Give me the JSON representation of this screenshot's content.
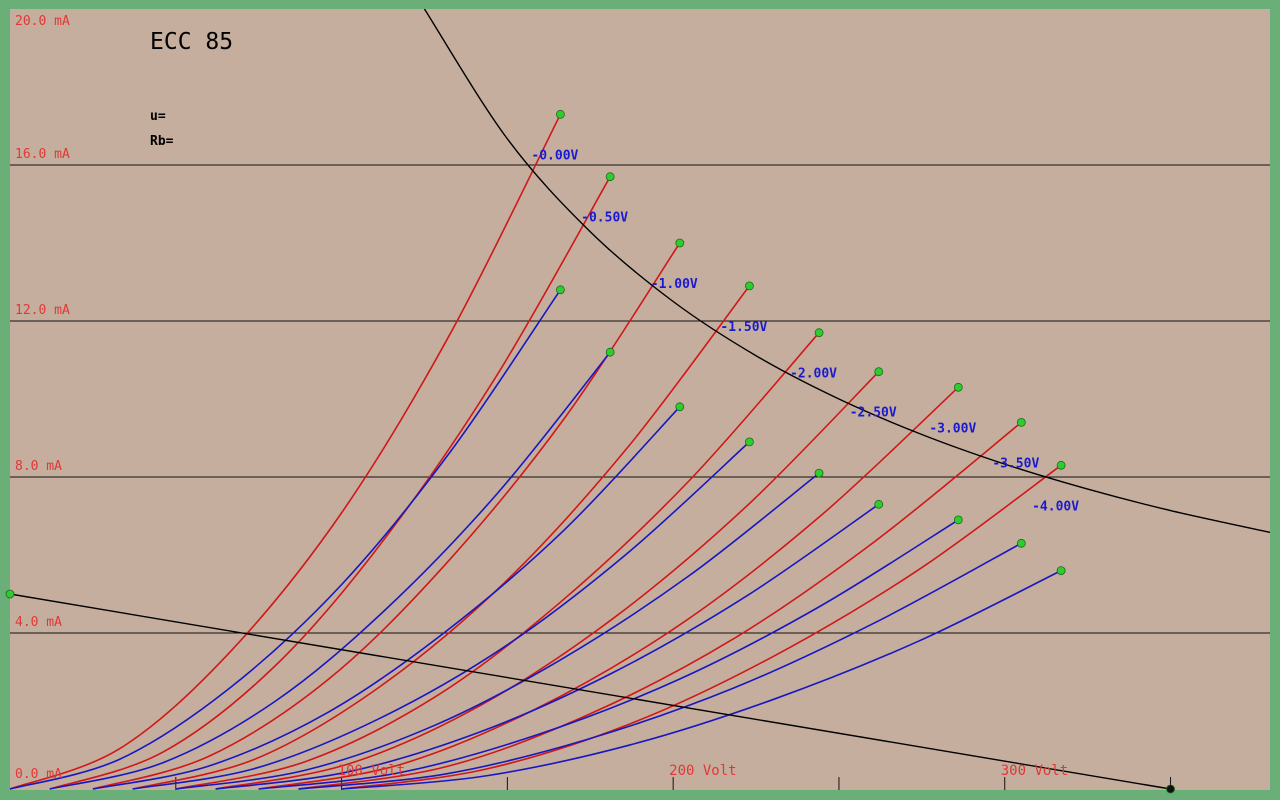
{
  "chart_data": {
    "type": "line",
    "title": "ECC 85",
    "annotations": [
      "u=",
      "Rb="
    ],
    "xlim": [
      0,
      380
    ],
    "ylim": [
      0,
      20
    ],
    "xticks": [
      {
        "value": 100,
        "label": "100 Volt"
      },
      {
        "value": 200,
        "label": "200 Volt"
      },
      {
        "value": 300,
        "label": "300 Volt"
      }
    ],
    "xminor_ticks": [
      50,
      150,
      250,
      350
    ],
    "yticks": [
      {
        "value": 0,
        "label": "0.0 mA"
      },
      {
        "value": 4,
        "label": "4.0 mA"
      },
      {
        "value": 8,
        "label": "8.0 mA"
      },
      {
        "value": 12,
        "label": "12.0 mA"
      },
      {
        "value": 16,
        "label": "16.0 mA"
      },
      {
        "value": 20,
        "label": "20.0 mA"
      }
    ],
    "grid": true,
    "series": [
      {
        "name": "-0.00V",
        "color": "#d01818",
        "end_marker_color": "#2ecc2e",
        "x": [
          0,
          33,
          66,
          100,
          133,
          166
        ],
        "values": [
          0,
          1.03,
          3.48,
          7.08,
          11.71,
          17.3
        ]
      },
      {
        "name": "-0.50V",
        "color": "#d01818",
        "end_marker_color": "#2ecc2e",
        "x": [
          12,
          46,
          80,
          113,
          147,
          181
        ],
        "values": [
          0,
          0.94,
          3.16,
          6.42,
          10.63,
          15.7
        ]
      },
      {
        "name": "-1.00V",
        "color": "#d01818",
        "end_marker_color": "#2ecc2e",
        "x": [
          25,
          60,
          96,
          131,
          167,
          202
        ],
        "values": [
          0,
          0.84,
          2.81,
          5.73,
          9.48,
          14.0
        ]
      },
      {
        "name": "-1.50V",
        "color": "#d01818",
        "end_marker_color": "#2ecc2e",
        "x": [
          37,
          74,
          111,
          149,
          186,
          223
        ],
        "values": [
          0,
          0.77,
          2.59,
          5.28,
          8.73,
          12.9
        ]
      },
      {
        "name": "-2.00V",
        "color": "#d01818",
        "end_marker_color": "#2ecc2e",
        "x": [
          50,
          89,
          128,
          166,
          205,
          244
        ],
        "values": [
          0,
          0.7,
          2.35,
          4.79,
          7.92,
          11.7
        ]
      },
      {
        "name": "-2.50V",
        "color": "#d01818",
        "end_marker_color": "#2ecc2e",
        "x": [
          62,
          102,
          142,
          182,
          222,
          262
        ],
        "values": [
          0,
          0.64,
          2.15,
          4.38,
          7.24,
          10.7
        ]
      },
      {
        "name": "-3.00V",
        "color": "#d01818",
        "end_marker_color": "#2ecc2e",
        "x": [
          75,
          117,
          159,
          202,
          244,
          286
        ],
        "values": [
          0,
          0.61,
          2.07,
          4.21,
          6.97,
          10.3
        ]
      },
      {
        "name": "-3.50V",
        "color": "#d01818",
        "end_marker_color": "#2ecc2e",
        "x": [
          87,
          131,
          174,
          218,
          261,
          305
        ],
        "values": [
          0,
          0.56,
          1.89,
          3.84,
          6.36,
          9.4
        ]
      },
      {
        "name": "-4.00V",
        "color": "#d01818",
        "end_marker_color": "#2ecc2e",
        "x": [
          100,
          143,
          187,
          230,
          274,
          317
        ],
        "values": [
          0,
          0.5,
          1.67,
          3.39,
          5.62,
          8.3
        ]
      },
      {
        "color": "#1818c0",
        "end_marker_color": "#2ecc2e",
        "x": [
          0,
          33,
          66,
          100,
          133,
          166
        ],
        "values": [
          0,
          0.76,
          2.57,
          5.24,
          8.67,
          12.8
        ]
      },
      {
        "color": "#1818c0",
        "end_marker_color": "#2ecc2e",
        "x": [
          12,
          46,
          80,
          113,
          147,
          181
        ],
        "values": [
          0,
          0.67,
          2.25,
          4.58,
          7.58,
          11.2
        ]
      },
      {
        "color": "#1818c0",
        "end_marker_color": "#2ecc2e",
        "x": [
          25,
          60,
          96,
          131,
          167,
          202
        ],
        "values": [
          0,
          0.59,
          1.97,
          4.01,
          6.63,
          9.8
        ]
      },
      {
        "color": "#1818c0",
        "end_marker_color": "#2ecc2e",
        "x": [
          37,
          74,
          111,
          149,
          186,
          223
        ],
        "values": [
          0,
          0.53,
          1.79,
          3.64,
          6.03,
          8.9
        ]
      },
      {
        "color": "#1818c0",
        "end_marker_color": "#2ecc2e",
        "x": [
          50,
          89,
          128,
          166,
          205,
          244
        ],
        "values": [
          0,
          0.48,
          1.63,
          3.31,
          5.48,
          8.1
        ]
      },
      {
        "color": "#1818c0",
        "end_marker_color": "#2ecc2e",
        "x": [
          62,
          102,
          142,
          182,
          222,
          262
        ],
        "values": [
          0,
          0.44,
          1.47,
          2.99,
          4.94,
          7.3
        ]
      },
      {
        "color": "#1818c0",
        "end_marker_color": "#2ecc2e",
        "x": [
          75,
          117,
          159,
          202,
          244,
          286
        ],
        "values": [
          0,
          0.41,
          1.39,
          2.82,
          4.67,
          6.9
        ]
      },
      {
        "color": "#1818c0",
        "end_marker_color": "#2ecc2e",
        "x": [
          87,
          131,
          174,
          218,
          261,
          305
        ],
        "values": [
          0,
          0.38,
          1.27,
          2.58,
          4.27,
          6.3
        ]
      },
      {
        "color": "#1818c0",
        "end_marker_color": "#2ecc2e",
        "x": [
          100,
          143,
          187,
          230,
          274,
          317
        ],
        "values": [
          0,
          0.33,
          1.13,
          2.29,
          3.79,
          5.6
        ]
      },
      {
        "color": "#000000",
        "x": [
          125,
          150,
          175,
          200,
          225,
          250,
          275,
          300,
          325,
          350,
          380
        ],
        "values": [
          20,
          16.67,
          14.29,
          12.5,
          11.11,
          10,
          9.09,
          8.33,
          7.69,
          7.14,
          6.58
        ]
      },
      {
        "color": "#000000",
        "start_marker_color": "#2ecc2e",
        "end_marker_color": "#111111",
        "x": [
          0,
          350
        ],
        "values": [
          5,
          0
        ]
      }
    ]
  }
}
